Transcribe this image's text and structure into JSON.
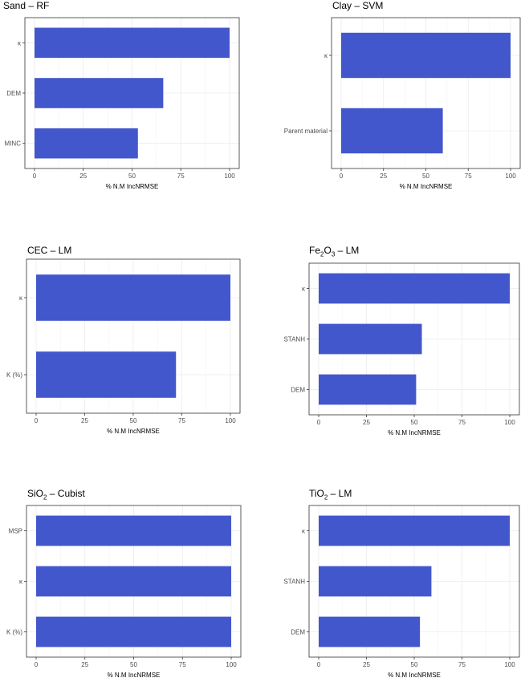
{
  "chart_data": [
    {
      "type": "bar",
      "orientation": "horizontal",
      "title": "Sand – RF",
      "categories": [
        "κ",
        "DEM",
        "MINC"
      ],
      "values": [
        100,
        66,
        53
      ],
      "xlabel": "% N.M IncNRMSE",
      "ylabel": "",
      "xlim": [
        0,
        100
      ],
      "xticks": [
        "0",
        "25",
        "50",
        "75",
        "100"
      ],
      "grid": true,
      "bar_color": "#4357cc"
    },
    {
      "type": "bar",
      "orientation": "horizontal",
      "title": "Clay – SVM",
      "categories": [
        "κ",
        "Parent material"
      ],
      "values": [
        100,
        60
      ],
      "xlabel": "% N.M IncNRMSE",
      "ylabel": "",
      "xlim": [
        0,
        100
      ],
      "xticks": [
        "0",
        "25",
        "50",
        "75",
        "100"
      ],
      "grid": true,
      "bar_color": "#4357cc"
    },
    {
      "type": "bar",
      "orientation": "horizontal",
      "title": "CEC – LM",
      "categories": [
        "κ",
        "K (%)"
      ],
      "values": [
        100,
        72
      ],
      "xlabel": "% N.M IncNRMSE",
      "ylabel": "",
      "xlim": [
        0,
        100
      ],
      "xticks": [
        "0",
        "25",
        "50",
        "75",
        "100"
      ],
      "grid": true,
      "bar_color": "#4357cc"
    },
    {
      "type": "bar",
      "orientation": "horizontal",
      "title_parts": [
        "Fe",
        "2",
        "O",
        "3",
        " – LM"
      ],
      "categories": [
        "κ",
        "STANH",
        "DEM"
      ],
      "values": [
        100,
        54,
        51
      ],
      "xlabel": "% N.M IncNRMSE",
      "ylabel": "",
      "xlim": [
        0,
        100
      ],
      "xticks": [
        "0",
        "25",
        "50",
        "75",
        "100"
      ],
      "grid": true,
      "bar_color": "#4357cc"
    },
    {
      "type": "bar",
      "orientation": "horizontal",
      "title_parts": [
        "SiO",
        "2",
        " – Cubist"
      ],
      "categories": [
        "MSP",
        "κ",
        "K (%)"
      ],
      "values": [
        100,
        100,
        100
      ],
      "xlabel": "% N.M IncNRMSE",
      "ylabel": "",
      "xlim": [
        0,
        100
      ],
      "xticks": [
        "0",
        "25",
        "50",
        "75",
        "100"
      ],
      "grid": true,
      "bar_color": "#4357cc"
    },
    {
      "type": "bar",
      "orientation": "horizontal",
      "title_parts": [
        "TiO",
        "2",
        " – LM"
      ],
      "categories": [
        "κ",
        "STANH",
        "DEM"
      ],
      "values": [
        100,
        59,
        53
      ],
      "xlabel": "% N.M IncNRMSE",
      "ylabel": "",
      "xlim": [
        0,
        100
      ],
      "xticks": [
        "0",
        "25",
        "50",
        "75",
        "100"
      ],
      "grid": true,
      "bar_color": "#4357cc"
    }
  ]
}
